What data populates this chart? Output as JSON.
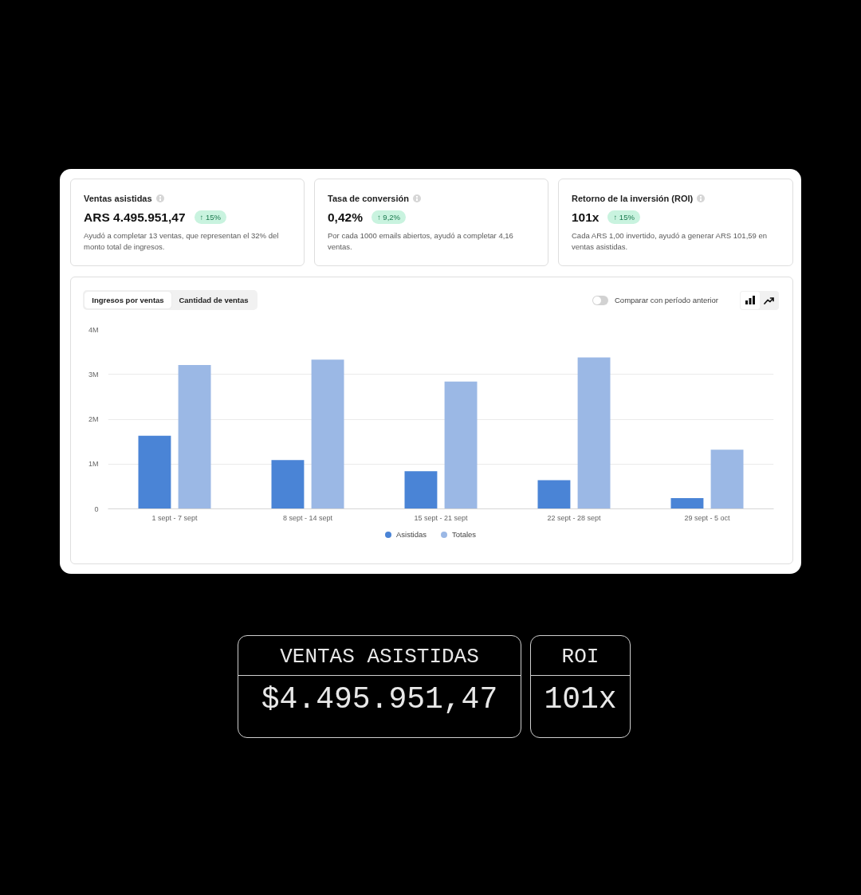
{
  "chart_data": {
    "type": "bar",
    "categories": [
      "1 sept - 7 sept",
      "8 sept - 14 sept",
      "15 sept - 21 sept",
      "22 sept - 28 sept",
      "29 sept - 5 oct"
    ],
    "series": [
      {
        "name": "Asistidas",
        "color": "#4a84d6",
        "values": [
          1630000,
          1090000,
          840000,
          640000,
          240000
        ]
      },
      {
        "name": "Totales",
        "color": "#9bb8e5",
        "values": [
          3210000,
          3330000,
          2840000,
          3380000,
          1320000
        ]
      }
    ],
    "ylim": [
      0,
      4000000
    ],
    "yticks": [
      0,
      {
        "value": 1000000,
        "label": "1M"
      },
      {
        "value": 2000000,
        "label": "2M"
      },
      {
        "value": 3000000,
        "label": "3M"
      },
      {
        "value": 4000000,
        "label": "4M"
      }
    ],
    "grid": "y",
    "legend": "bottom",
    "annotations": [
      "Ventas asistidas",
      "ARS 4.495.951,47",
      "↑ 15%",
      "Ayudó a completar 13 ventas, que representan el 32% del monto total de ingresos.",
      "Tasa de conversión",
      "0,42%",
      "↑ 9,2%",
      "Por cada 1000 emails abiertos, ayudó a completar 4,16 ventas.",
      "Retorno de la inversión (ROI)",
      "101x",
      "↑ 15%",
      "Cada ARS 1,00 invertido, ayudó a generar ARS 101,59 en ventas asistidas.",
      "Ingresos por ventas",
      "Cantidad de ventas",
      "Comparar con período anterior",
      "VENTAS ASISTIDAS",
      "$4.495.951,47",
      "ROI",
      "101x"
    ]
  }
}
